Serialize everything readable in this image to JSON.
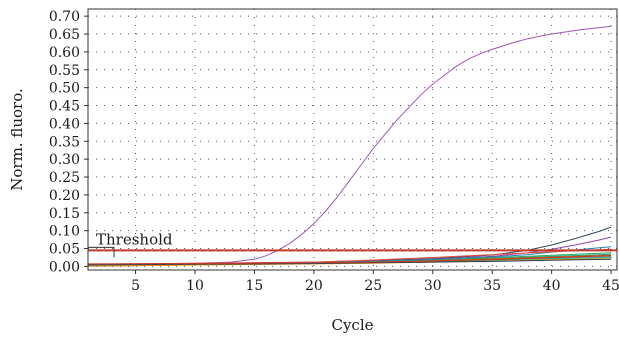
{
  "chart_data": {
    "type": "line",
    "title": "",
    "xlabel": "Cycle",
    "ylabel": "Norm. fluoro.",
    "xlim": [
      1,
      45.5
    ],
    "ylim": [
      -0.01,
      0.72
    ],
    "xticks": [
      5,
      10,
      15,
      20,
      25,
      30,
      35,
      40,
      45
    ],
    "yticks": [
      0.0,
      0.05,
      0.1,
      0.15,
      0.2,
      0.25,
      0.3,
      0.35,
      0.4,
      0.45,
      0.5,
      0.55,
      0.6,
      0.65,
      0.7
    ],
    "ytick_labels": [
      "0.00",
      "0.05",
      "0.10",
      "0.15",
      "0.20",
      "0.25",
      "0.30",
      "0.35",
      "0.40",
      "0.45",
      "0.50",
      "0.55",
      "0.60",
      "0.65",
      "0.70"
    ],
    "grid": true,
    "threshold": {
      "label": "Threshold",
      "value": 0.045,
      "color": "#c0392b"
    },
    "series": [
      {
        "color": "#9b59b6",
        "x": [
          1,
          5,
          10,
          13,
          15,
          16,
          17,
          18,
          19,
          20,
          21,
          22,
          23,
          24,
          25,
          26,
          27,
          28,
          29,
          30,
          31,
          32,
          33,
          34,
          35,
          36,
          37,
          38,
          39,
          40,
          41,
          42,
          43,
          44,
          45
        ],
        "y": [
          0.003,
          0.006,
          0.009,
          0.012,
          0.02,
          0.03,
          0.045,
          0.065,
          0.09,
          0.12,
          0.155,
          0.195,
          0.24,
          0.285,
          0.33,
          0.37,
          0.41,
          0.445,
          0.48,
          0.51,
          0.535,
          0.56,
          0.58,
          0.595,
          0.607,
          0.618,
          0.628,
          0.637,
          0.644,
          0.65,
          0.655,
          0.66,
          0.664,
          0.668,
          0.672
        ]
      },
      {
        "color": "#34495e",
        "x": [
          1,
          10,
          20,
          25,
          30,
          35,
          38,
          40,
          42,
          44,
          45
        ],
        "y": [
          0.005,
          0.008,
          0.012,
          0.016,
          0.022,
          0.032,
          0.045,
          0.06,
          0.078,
          0.098,
          0.11
        ]
      },
      {
        "color": "#8e44ad",
        "x": [
          1,
          10,
          20,
          25,
          30,
          35,
          38,
          40,
          42,
          44,
          45
        ],
        "y": [
          0.004,
          0.007,
          0.011,
          0.015,
          0.02,
          0.028,
          0.038,
          0.048,
          0.06,
          0.074,
          0.082
        ]
      },
      {
        "color": "#2980b9",
        "x": [
          1,
          10,
          20,
          25,
          30,
          35,
          38,
          40,
          42,
          44,
          45
        ],
        "y": [
          0.003,
          0.006,
          0.01,
          0.014,
          0.019,
          0.026,
          0.033,
          0.04,
          0.046,
          0.052,
          0.055
        ]
      },
      {
        "color": "#e74c3c",
        "x": [
          1,
          10,
          20,
          25,
          30,
          35,
          40,
          45
        ],
        "y": [
          0.006,
          0.009,
          0.012,
          0.018,
          0.025,
          0.033,
          0.041,
          0.048
        ]
      },
      {
        "color": "#27ae60",
        "x": [
          1,
          10,
          20,
          25,
          30,
          35,
          40,
          45
        ],
        "y": [
          0.002,
          0.005,
          0.009,
          0.013,
          0.018,
          0.024,
          0.031,
          0.038
        ]
      },
      {
        "color": "#16a085",
        "x": [
          1,
          10,
          20,
          25,
          30,
          35,
          40,
          45
        ],
        "y": [
          0.004,
          0.006,
          0.01,
          0.013,
          0.017,
          0.022,
          0.028,
          0.034
        ]
      },
      {
        "color": "#d35400",
        "x": [
          1,
          10,
          20,
          25,
          30,
          35,
          40,
          45
        ],
        "y": [
          0.001,
          0.004,
          0.008,
          0.012,
          0.016,
          0.021,
          0.026,
          0.031
        ]
      },
      {
        "color": "#7f8c8d",
        "x": [
          1,
          10,
          20,
          25,
          30,
          35,
          40,
          45
        ],
        "y": [
          0.005,
          0.007,
          0.009,
          0.011,
          0.014,
          0.018,
          0.023,
          0.027
        ]
      },
      {
        "color": "#1abc9c",
        "x": [
          1,
          10,
          20,
          25,
          30,
          35,
          40,
          45
        ],
        "y": [
          0.003,
          0.005,
          0.008,
          0.01,
          0.013,
          0.017,
          0.021,
          0.025
        ]
      },
      {
        "color": "#f39c12",
        "x": [
          1,
          10,
          20,
          25,
          30,
          35,
          40,
          45
        ],
        "y": [
          0.002,
          0.004,
          0.007,
          0.009,
          0.012,
          0.015,
          0.019,
          0.022
        ]
      },
      {
        "color": "#2c3e50",
        "x": [
          1,
          10,
          20,
          25,
          30,
          35,
          40,
          45
        ],
        "y": [
          0.004,
          0.006,
          0.008,
          0.01,
          0.012,
          0.014,
          0.017,
          0.02
        ]
      },
      {
        "color": "#c0392b",
        "x": [
          1,
          10,
          20,
          25,
          30,
          35,
          40,
          45
        ],
        "y": [
          0.007,
          0.008,
          0.01,
          0.012,
          0.015,
          0.019,
          0.024,
          0.03
        ]
      }
    ]
  }
}
